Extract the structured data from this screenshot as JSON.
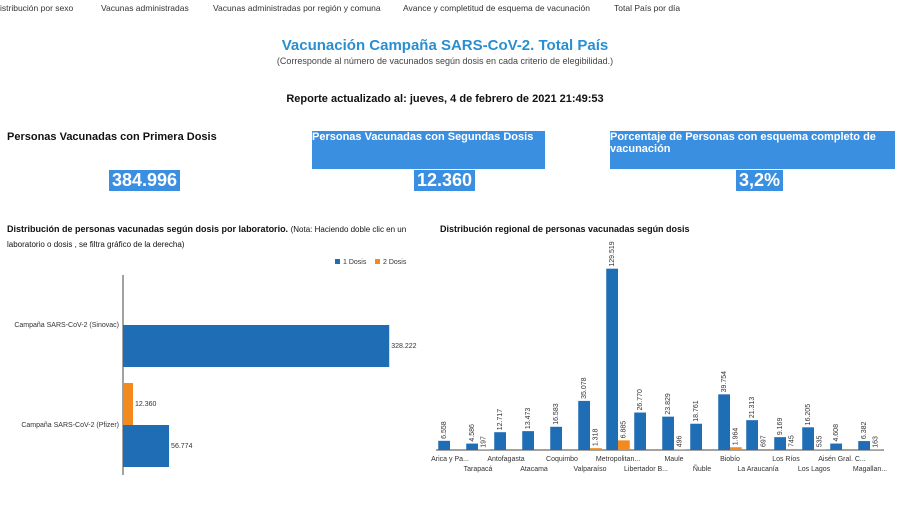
{
  "nav": [
    "istribución por sexo",
    "Vacunas administradas",
    "Vacunas administradas por región y comuna",
    "Avance y completitud de esquema de vacunación",
    "Total País por día"
  ],
  "header": {
    "title": "Vacunación Campaña SARS-CoV-2. Total País",
    "subtitle": "(Corresponde al número de vacunados según dosis en cada criterio de elegibilidad.)",
    "report": "Reporte actualizado al: jueves, 4 de febrero de 2021 21:49:53"
  },
  "kpis": [
    {
      "label": "Personas Vacunadas con Primera Dosis",
      "value": "384.996"
    },
    {
      "label": "Personas Vacunadas con Segundas Dosis",
      "value": "12.360"
    },
    {
      "label": "Porcentaje de Personas con esquema completo de vacunación",
      "value": "3,2%"
    }
  ],
  "chart_data": [
    {
      "type": "bar",
      "orientation": "horizontal",
      "title": "Distribución de personas vacunadas según dosis por laboratorio.",
      "note": "(Nota: Haciendo doble clic en un laboratorio o dosis , se filtra gráfico de la derecha)",
      "categories": [
        "Campaña SARS-CoV-2 (Sinovac)",
        "Campaña SARS-CoV-2 (Pfizer)"
      ],
      "series": [
        {
          "name": "1 Dosis",
          "color": "#1f6db5",
          "values": [
            328222,
            56774
          ],
          "value_labels": [
            "328.222",
            "56.774"
          ]
        },
        {
          "name": "2 Dosis",
          "color": "#f28a1e",
          "values": [
            null,
            12360
          ],
          "value_labels": [
            null,
            "12.360"
          ]
        }
      ],
      "xlim": [
        0,
        360000
      ],
      "legend": "top-right"
    },
    {
      "type": "bar",
      "orientation": "vertical",
      "title": "Distribución regional de personas vacunadas según dosis",
      "categories": [
        "Arica y Pa...",
        "Tarapacá",
        "Antofagasta",
        "Atacama",
        "Coquimbo",
        "Valparaíso",
        "Metropolitan...",
        "Libertador B...",
        "Maule",
        "Ñuble",
        "Biobío",
        "La Araucanía",
        "Los Ríos",
        "Los Lagos",
        "Aisén Gral. C...",
        "Magallan..."
      ],
      "series": [
        {
          "name": "1 Dosis",
          "color": "#1f6db5",
          "values": [
            6558,
            4586,
            12717,
            13473,
            16583,
            35078,
            129519,
            26770,
            23829,
            18761,
            39754,
            21313,
            9169,
            16205,
            4608,
            6382
          ],
          "value_labels": [
            "6.558",
            "4.586",
            "12.717",
            "13.473",
            "16.583",
            "35.078",
            "129.519",
            "26.770",
            "23.829",
            "18.761",
            "39.754",
            "21.313",
            "9.169",
            "16.205",
            "4.608",
            "6.382"
          ]
        },
        {
          "name": "2 Dosis",
          "color": "#f28a1e",
          "values": [
            null,
            197,
            null,
            null,
            null,
            1318,
            6885,
            null,
            496,
            null,
            1964,
            697,
            745,
            535,
            null,
            163
          ],
          "value_labels": [
            null,
            "197",
            null,
            null,
            null,
            "1.318",
            "6.885",
            null,
            "496",
            null,
            "1.964",
            "697",
            "745",
            "535",
            null,
            "163"
          ]
        }
      ],
      "ylim": [
        0,
        150000
      ]
    }
  ]
}
